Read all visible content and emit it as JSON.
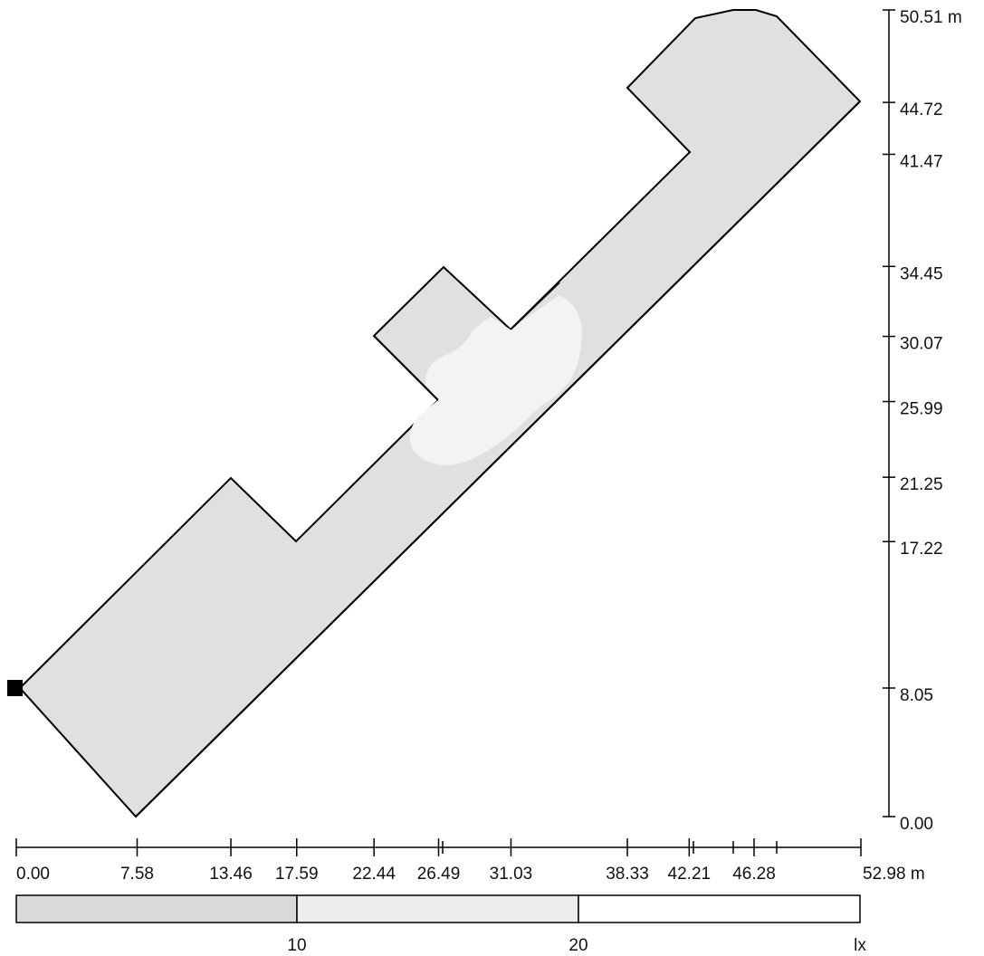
{
  "y_axis": {
    "ticks": [
      {
        "value": 0.0,
        "label": "0.00"
      },
      {
        "value": 8.05,
        "label": "8.05"
      },
      {
        "value": 17.22,
        "label": "17.22"
      },
      {
        "value": 21.25,
        "label": "21.25"
      },
      {
        "value": 25.99,
        "label": "25.99"
      },
      {
        "value": 30.07,
        "label": "30.07"
      },
      {
        "value": 34.45,
        "label": "34.45"
      },
      {
        "value": 41.47,
        "label": "41.47"
      },
      {
        "value": 44.72,
        "label": "44.72"
      },
      {
        "value": 50.51,
        "label": "50.51 m"
      }
    ]
  },
  "x_axis": {
    "ticks": [
      {
        "value": 0.0,
        "label": "0.00"
      },
      {
        "value": 7.58,
        "label": "7.58"
      },
      {
        "value": 13.46,
        "label": "13.46"
      },
      {
        "value": 17.59,
        "label": "17.59"
      },
      {
        "value": 22.44,
        "label": "22.44"
      },
      {
        "value": 26.49,
        "label": "26.49"
      },
      {
        "value": 31.03,
        "label": "31.03"
      },
      {
        "value": 38.33,
        "label": "38.33"
      },
      {
        "value": 42.21,
        "label": "42.21"
      },
      {
        "value": 46.28,
        "label": "46.28"
      },
      {
        "value": 52.98,
        "label": "52.98 m"
      }
    ]
  },
  "legend": {
    "labels": [
      "10",
      "20",
      "lx"
    ],
    "colors": [
      "#d9d9d9",
      "#ededed",
      "#ffffff"
    ]
  },
  "colors": {
    "area_fill": "#e0e0e0",
    "bright_zone": "#f3f3f3",
    "outline": "#000000"
  }
}
